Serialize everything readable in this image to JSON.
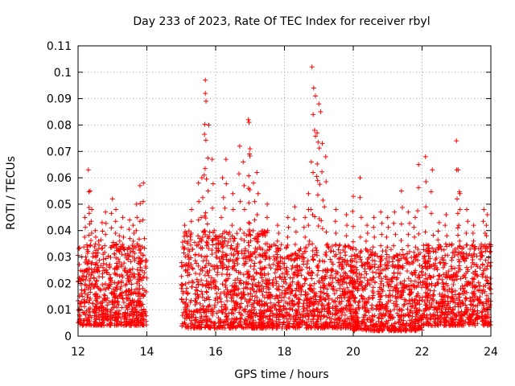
{
  "chart_data": {
    "type": "scatter",
    "title": "Day 233 of 2023, Rate Of TEC Index for receiver rbyl",
    "xlabel": "GPS time / hours",
    "ylabel": "ROTI / TECUs",
    "xlim": [
      12,
      24
    ],
    "ylim": [
      0,
      0.11
    ],
    "xticks": [
      12,
      14,
      16,
      18,
      20,
      22,
      24
    ],
    "xtick_labels": [
      "12",
      "14",
      "16",
      "18",
      "20",
      "22",
      "24"
    ],
    "yticks": [
      0,
      0.01,
      0.02,
      0.03,
      0.04,
      0.05,
      0.06,
      0.07,
      0.08,
      0.09,
      0.1,
      0.11
    ],
    "ytick_labels": [
      "0",
      "0.01",
      "0.02",
      "0.03",
      "0.04",
      "0.05",
      "0.06",
      "0.07",
      "0.08",
      "0.09",
      "0.1",
      "0.11"
    ],
    "grid": true,
    "marker": "+",
    "color": "#ff0000",
    "data_gap": [
      14.0,
      15.0
    ],
    "series": [
      {
        "name": "ROTI",
        "x": [
          12.2,
          12.3,
          12.35,
          12.4,
          12.5,
          12.7,
          12.8,
          13.0,
          13.1,
          13.3,
          13.5,
          13.7,
          13.8,
          13.9,
          12.6,
          13.2,
          13.6,
          15.1,
          15.3,
          15.5,
          15.6,
          15.7,
          15.7,
          15.72,
          15.8,
          15.9,
          16.2,
          16.3,
          16.5,
          16.7,
          16.8,
          16.95,
          16.97,
          17.0,
          17.1,
          17.2,
          17.5,
          17.8,
          18.1,
          18.3,
          18.6,
          18.7,
          18.8,
          18.85,
          18.9,
          18.95,
          19.0,
          19.05,
          19.1,
          19.2,
          19.5,
          19.8,
          20.0,
          20.2,
          20.4,
          20.6,
          20.8,
          21.0,
          21.2,
          21.4,
          21.6,
          21.8,
          21.9,
          22.1,
          22.3,
          22.5,
          22.7,
          23.0,
          23.05,
          23.1,
          23.3,
          23.5,
          23.8,
          23.9
        ],
        "y": [
          0.045,
          0.063,
          0.055,
          0.048,
          0.04,
          0.043,
          0.047,
          0.052,
          0.048,
          0.045,
          0.044,
          0.05,
          0.057,
          0.058,
          0.036,
          0.038,
          0.042,
          0.042,
          0.048,
          0.058,
          0.06,
          0.092,
          0.097,
          0.089,
          0.08,
          0.067,
          0.06,
          0.067,
          0.054,
          0.072,
          0.066,
          0.082,
          0.081,
          0.071,
          0.058,
          0.062,
          0.05,
          0.042,
          0.045,
          0.049,
          0.045,
          0.054,
          0.102,
          0.094,
          0.091,
          0.077,
          0.088,
          0.085,
          0.073,
          0.068,
          0.048,
          0.046,
          0.053,
          0.06,
          0.042,
          0.045,
          0.047,
          0.045,
          0.047,
          0.055,
          0.047,
          0.045,
          0.065,
          0.068,
          0.063,
          0.043,
          0.046,
          0.074,
          0.063,
          0.054,
          0.048,
          0.042,
          0.048,
          0.046
        ],
        "bulk_bands": [
          {
            "x_range": [
              12.0,
              14.0
            ],
            "y_range": [
              0.004,
              0.035
            ]
          },
          {
            "x_range": [
              15.0,
              17.5
            ],
            "y_range": [
              0.003,
              0.04
            ]
          },
          {
            "x_range": [
              17.5,
              20.0
            ],
            "y_range": [
              0.003,
              0.035
            ]
          },
          {
            "x_range": [
              20.0,
              22.0
            ],
            "y_range": [
              0.002,
              0.033
            ]
          },
          {
            "x_range": [
              22.0,
              24.0
            ],
            "y_range": [
              0.004,
              0.035
            ]
          }
        ]
      }
    ]
  }
}
